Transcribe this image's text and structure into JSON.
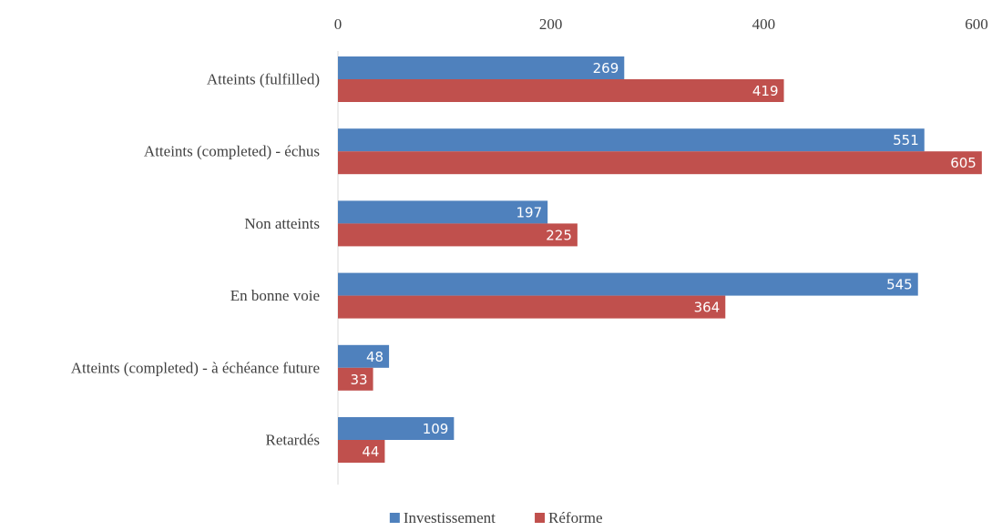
{
  "chart_data": {
    "type": "bar",
    "orientation": "horizontal",
    "categories": [
      "Atteints (fulfilled)",
      "Atteints (completed) - échus",
      "Non atteints",
      "En bonne voie",
      "Atteints (completed) - à échéance future",
      "Retardés"
    ],
    "series": [
      {
        "name": "Investissement",
        "color": "#4F81BD",
        "values": [
          269,
          551,
          197,
          545,
          48,
          109
        ]
      },
      {
        "name": "Réforme",
        "color": "#C0504D",
        "values": [
          419,
          605,
          225,
          364,
          33,
          44
        ]
      }
    ],
    "xlim": [
      0,
      600
    ],
    "xticks": [
      0,
      200,
      400,
      600
    ],
    "xtick_labels": [
      "0",
      "200",
      "400",
      "600"
    ],
    "axis_position": "top",
    "grid": false,
    "data_labels": true,
    "legend_position": "bottom"
  }
}
